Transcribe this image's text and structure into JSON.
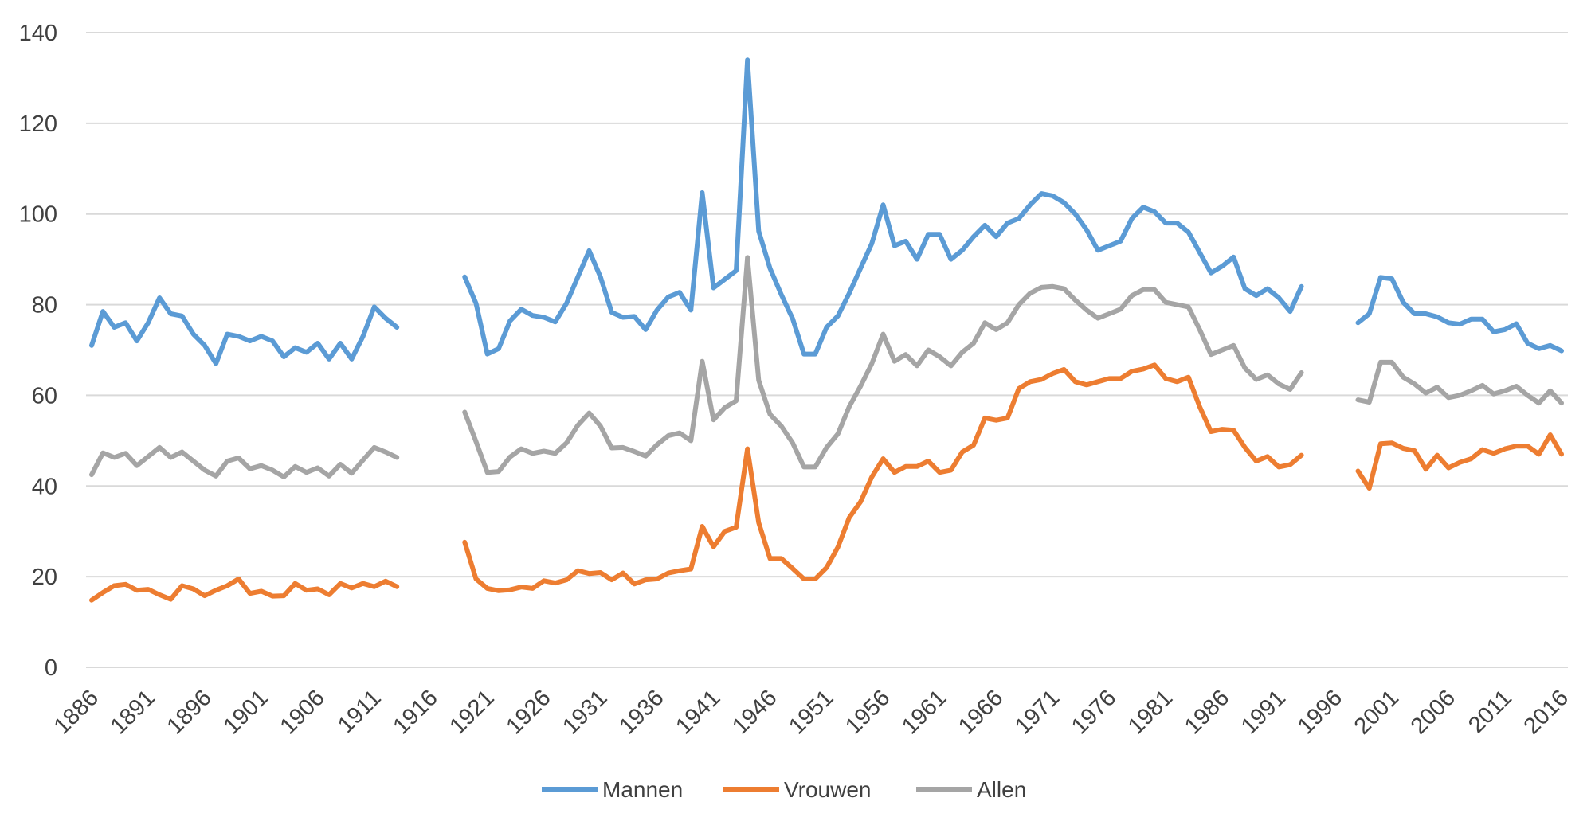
{
  "chart_data": {
    "type": "line",
    "title": "",
    "xlabel": "",
    "ylabel": "",
    "ylim": [
      0,
      140
    ],
    "yticks": [
      0,
      20,
      40,
      60,
      80,
      100,
      120,
      140
    ],
    "xlim": [
      1886,
      2016
    ],
    "xticks": [
      1886,
      1891,
      1896,
      1901,
      1906,
      1911,
      1916,
      1921,
      1926,
      1931,
      1936,
      1941,
      1946,
      1951,
      1956,
      1961,
      1966,
      1971,
      1976,
      1981,
      1986,
      1991,
      1996,
      2001,
      2006,
      2011,
      2016
    ],
    "grid": "horizontal",
    "legend": "bottom",
    "series": [
      {
        "name": "Mannen",
        "color": "#5B9BD5",
        "segments": [
          {
            "start": 1886,
            "values": [
              71,
              78.5,
              75,
              76,
              72,
              76,
              81.5,
              78,
              77.5,
              73.5,
              71,
              67,
              73.5,
              73,
              72,
              73,
              72,
              68.5,
              70.5,
              69.5,
              71.5,
              68,
              71.5,
              68,
              73,
              79.5,
              77,
              75
            ]
          },
          {
            "start": 1919,
            "values": [
              86.1,
              80.3,
              69.1,
              70.3,
              76.4,
              79,
              77.6,
              77.2,
              76.2,
              80.3,
              86.1,
              91.9,
              86.1,
              78.3,
              77.2,
              77.4,
              74.5,
              78.8,
              81.7,
              82.7,
              78.8,
              104.7,
              83.7,
              85.6,
              87.5,
              134,
              96.2,
              88,
              82.2,
              76.9,
              69.1,
              69.1,
              75,
              77.5,
              82.5,
              88,
              93.5,
              102,
              93,
              94,
              90,
              95.5,
              95.5,
              90,
              92,
              95,
              97.5,
              95,
              98,
              99,
              102,
              104.5,
              104,
              102.5,
              100,
              96.5,
              92,
              93,
              94,
              99,
              101.5,
              100.5,
              98,
              98,
              96,
              91.5,
              87,
              88.5,
              90.5,
              83.5,
              82,
              83.5,
              81.5,
              78.5,
              84
            ]
          },
          {
            "start": 1998,
            "values": [
              76,
              78,
              86,
              85.7,
              80.5,
              78,
              78,
              77.3,
              76,
              75.7,
              76.8,
              76.8,
              74,
              74.5,
              75.8,
              71.5,
              70.3,
              71,
              69.8
            ]
          }
        ]
      },
      {
        "name": "Vrouwen",
        "color": "#ED7D31",
        "segments": [
          {
            "start": 1886,
            "values": [
              14.8,
              16.5,
              18,
              18.3,
              17,
              17.2,
              16,
              15,
              18,
              17.3,
              15.8,
              17,
              18,
              19.5,
              16.3,
              16.8,
              15.7,
              15.8,
              18.5,
              17,
              17.3,
              16,
              18.5,
              17.5,
              18.5,
              17.8,
              19,
              17.8
            ]
          },
          {
            "start": 1919,
            "values": [
              27.6,
              19.5,
              17.4,
              16.9,
              17.1,
              17.7,
              17.4,
              19.1,
              18.6,
              19.3,
              21.3,
              20.7,
              20.9,
              19.3,
              20.8,
              18.4,
              19.3,
              19.5,
              20.8,
              21.3,
              21.7,
              31.1,
              26.6,
              30,
              30.9,
              48.2,
              31.9,
              24,
              24,
              21.8,
              19.5,
              19.5,
              22,
              26.5,
              33,
              36.5,
              42,
              46,
              43,
              44.3,
              44.3,
              45.5,
              43,
              43.5,
              47.5,
              49,
              55,
              54.5,
              55,
              61.5,
              63,
              63.5,
              64.8,
              65.7,
              63,
              62.3,
              63,
              63.7,
              63.7,
              65.3,
              65.8,
              66.7,
              63.7,
              63,
              64,
              57.5,
              52,
              52.5,
              52.3,
              48.5,
              45.5,
              46.5,
              44.2,
              44.7,
              46.8
            ]
          },
          {
            "start": 1998,
            "values": [
              43.3,
              39.5,
              49.3,
              49.5,
              48.3,
              47.8,
              43.7,
              46.8,
              44,
              45.2,
              46,
              48,
              47.2,
              48.2,
              48.8,
              48.8,
              47,
              51.3,
              47
            ]
          }
        ]
      },
      {
        "name": "Allen",
        "color": "#A5A5A5",
        "segments": [
          {
            "start": 1886,
            "values": [
              42.5,
              47.3,
              46.3,
              47.2,
              44.5,
              46.5,
              48.5,
              46.3,
              47.5,
              45.5,
              43.5,
              42.2,
              45.5,
              46.2,
              43.8,
              44.5,
              43.5,
              42,
              44.3,
              43,
              44,
              42.2,
              44.8,
              42.8,
              45.7,
              48.5,
              47.5,
              46.3
            ]
          },
          {
            "start": 1919,
            "values": [
              56.3,
              49.8,
              43,
              43.2,
              46.4,
              48.2,
              47.2,
              47.7,
              47.2,
              49.5,
              53.4,
              56.1,
              53.2,
              48.4,
              48.5,
              47.6,
              46.6,
              49.1,
              51.1,
              51.7,
              50,
              67.5,
              54.6,
              57.3,
              58.8,
              90.4,
              63.3,
              55.8,
              53.2,
              49.5,
              44.2,
              44.2,
              48.5,
              51.5,
              57.5,
              62,
              67,
              73.5,
              67.5,
              69,
              66.5,
              70,
              68.5,
              66.5,
              69.5,
              71.5,
              76,
              74.5,
              76,
              80,
              82.5,
              83.8,
              84,
              83.5,
              81,
              78.8,
              77,
              78,
              79,
              82,
              83.3,
              83.3,
              80.5,
              80,
              79.5,
              74.5,
              69,
              70,
              71,
              66,
              63.5,
              64.5,
              62.5,
              61.3,
              65
            ]
          },
          {
            "start": 1998,
            "values": [
              59,
              58.5,
              67.3,
              67.3,
              64,
              62.5,
              60.5,
              61.8,
              59.5,
              60,
              61,
              62.2,
              60.3,
              61,
              62,
              60,
              58.3,
              61,
              58.3
            ]
          }
        ]
      }
    ]
  }
}
